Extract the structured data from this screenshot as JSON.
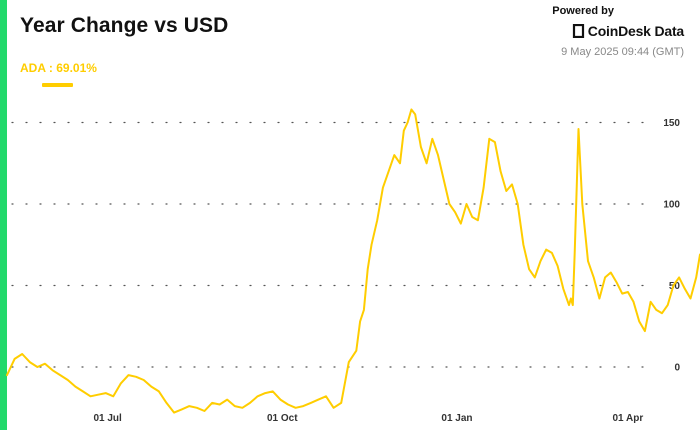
{
  "header": {
    "title": "Year Change vs USD"
  },
  "brand": {
    "powered_by": "Powered by",
    "name": "CoinDesk Data",
    "timestamp": "9 May 2025 09:44 (GMT)"
  },
  "legend": {
    "label": "ADA : 69.01%",
    "color": "#ffcd00"
  },
  "colors": {
    "accent": "#22d96b",
    "series": "#ffcd00",
    "grid": "#555555",
    "text": "#111111"
  },
  "chart_data": {
    "type": "line",
    "title": "Year Change vs USD",
    "xlabel": "",
    "ylabel": "",
    "x_range": [
      "2024-05-09",
      "2025-05-09"
    ],
    "ylim": [
      -30,
      170
    ],
    "y_ticks": [
      0,
      50,
      100,
      150
    ],
    "x_ticks": [
      {
        "date": "2024-07-01",
        "label": "01 Jul"
      },
      {
        "date": "2024-10-01",
        "label": "01 Oct"
      },
      {
        "date": "2025-01-01",
        "label": "01 Jan"
      },
      {
        "date": "2025-04-01",
        "label": "01 Apr"
      }
    ],
    "grid": "horizontal-dotted",
    "legend_position": "top-left",
    "series": [
      {
        "name": "ADA",
        "color": "#ffcd00",
        "x": [
          "2024-05-09",
          "2024-05-13",
          "2024-05-17",
          "2024-05-21",
          "2024-05-25",
          "2024-05-29",
          "2024-06-02",
          "2024-06-06",
          "2024-06-10",
          "2024-06-14",
          "2024-06-18",
          "2024-06-22",
          "2024-06-26",
          "2024-06-30",
          "2024-07-04",
          "2024-07-08",
          "2024-07-12",
          "2024-07-16",
          "2024-07-20",
          "2024-07-24",
          "2024-07-28",
          "2024-08-01",
          "2024-08-05",
          "2024-08-09",
          "2024-08-13",
          "2024-08-17",
          "2024-08-21",
          "2024-08-25",
          "2024-08-29",
          "2024-09-02",
          "2024-09-06",
          "2024-09-10",
          "2024-09-14",
          "2024-09-18",
          "2024-09-22",
          "2024-09-26",
          "2024-09-30",
          "2024-10-04",
          "2024-10-08",
          "2024-10-12",
          "2024-10-16",
          "2024-10-20",
          "2024-10-24",
          "2024-10-28",
          "2024-11-01",
          "2024-11-05",
          "2024-11-09",
          "2024-11-11",
          "2024-11-13",
          "2024-11-15",
          "2024-11-17",
          "2024-11-20",
          "2024-11-23",
          "2024-11-26",
          "2024-11-29",
          "2024-12-02",
          "2024-12-04",
          "2024-12-06",
          "2024-12-08",
          "2024-12-10",
          "2024-12-13",
          "2024-12-16",
          "2024-12-19",
          "2024-12-22",
          "2024-12-25",
          "2024-12-28",
          "2024-12-31",
          "2025-01-03",
          "2025-01-06",
          "2025-01-09",
          "2025-01-12",
          "2025-01-15",
          "2025-01-18",
          "2025-01-21",
          "2025-01-24",
          "2025-01-27",
          "2025-01-30",
          "2025-02-02",
          "2025-02-05",
          "2025-02-08",
          "2025-02-11",
          "2025-02-14",
          "2025-02-17",
          "2025-02-20",
          "2025-02-23",
          "2025-02-26",
          "2025-03-01",
          "2025-03-02",
          "2025-03-03",
          "2025-03-04",
          "2025-03-06",
          "2025-03-08",
          "2025-03-11",
          "2025-03-14",
          "2025-03-17",
          "2025-03-20",
          "2025-03-23",
          "2025-03-26",
          "2025-03-29",
          "2025-04-01",
          "2025-04-04",
          "2025-04-07",
          "2025-04-10",
          "2025-04-13",
          "2025-04-16",
          "2025-04-19",
          "2025-04-22",
          "2025-04-25",
          "2025-04-28",
          "2025-05-01",
          "2025-05-04",
          "2025-05-07",
          "2025-05-09"
        ],
        "values": [
          -5,
          5,
          8,
          3,
          0,
          2,
          -2,
          -5,
          -8,
          -12,
          -15,
          -18,
          -17,
          -16,
          -18,
          -10,
          -5,
          -6,
          -8,
          -12,
          -15,
          -22,
          -28,
          -26,
          -24,
          -25,
          -27,
          -22,
          -23,
          -20,
          -24,
          -25,
          -22,
          -18,
          -16,
          -15,
          -20,
          -23,
          -25,
          -24,
          -22,
          -20,
          -18,
          -25,
          -22,
          3,
          10,
          28,
          35,
          60,
          75,
          90,
          110,
          120,
          130,
          125,
          145,
          150,
          158,
          155,
          135,
          125,
          140,
          130,
          115,
          100,
          95,
          88,
          100,
          92,
          90,
          110,
          140,
          138,
          120,
          108,
          112,
          100,
          75,
          60,
          55,
          65,
          72,
          70,
          62,
          48,
          38,
          42,
          38,
          70,
          146,
          100,
          65,
          55,
          42,
          55,
          58,
          52,
          45,
          46,
          40,
          28,
          22,
          40,
          35,
          33,
          38,
          50,
          55,
          48,
          42,
          55,
          69
        ]
      }
    ]
  }
}
